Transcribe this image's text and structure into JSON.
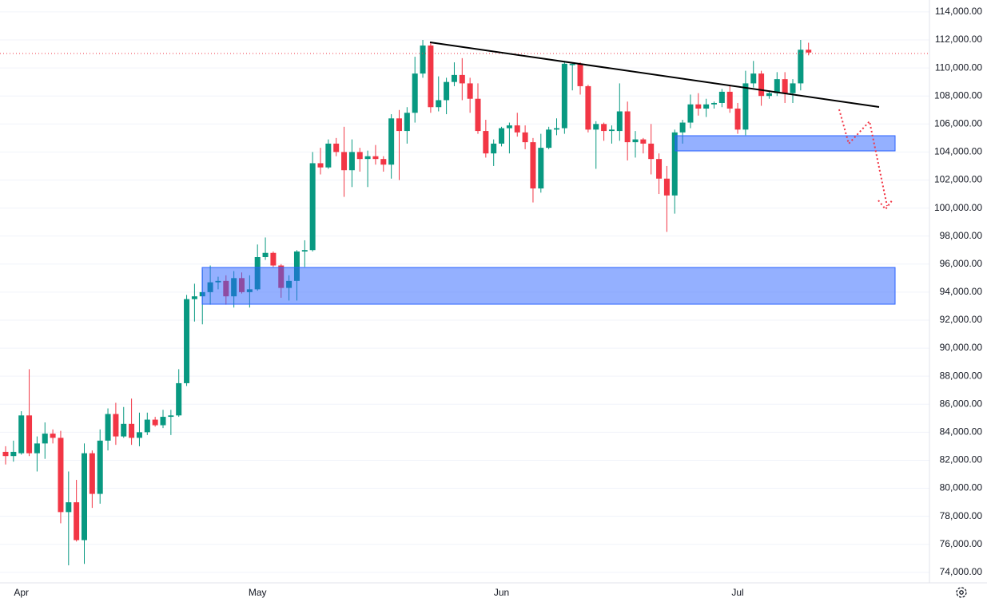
{
  "chart_data": {
    "type": "candlestick",
    "up_color": "#089981",
    "down_color": "#f23645",
    "grid": true,
    "categories": [
      null,
      null,
      "Apr",
      null,
      null,
      null,
      null,
      null,
      null,
      null,
      null,
      null,
      null,
      null,
      null,
      null,
      null,
      null,
      null,
      null,
      null,
      null,
      null,
      null,
      null,
      null,
      null,
      null,
      null,
      null,
      null,
      null,
      "May",
      null,
      null,
      null,
      null,
      null,
      null,
      null,
      null,
      null,
      null,
      null,
      null,
      null,
      null,
      null,
      null,
      null,
      null,
      null,
      null,
      null,
      null,
      null,
      null,
      null,
      null,
      null,
      null,
      null,
      null,
      "Jun",
      null,
      null,
      null,
      null,
      null,
      null,
      null,
      null,
      null,
      null,
      null,
      null,
      null,
      null,
      null,
      null,
      null,
      null,
      null,
      null,
      null,
      null,
      null,
      null,
      null,
      null,
      null,
      null,
      null,
      "Jul",
      null,
      null,
      null,
      null,
      null,
      null,
      null,
      null,
      null
    ],
    "open": [
      82600,
      82300,
      82500,
      85200,
      82500,
      83200,
      83900,
      83600,
      78300,
      79000,
      76300,
      82500,
      79600,
      83400,
      85300,
      83700,
      84600,
      83600,
      84000,
      84900,
      84500,
      85100,
      85200,
      87500,
      93500,
      93700,
      94000,
      94700,
      94800,
      93700,
      95000,
      94000,
      94200,
      96500,
      96800,
      95900,
      94300,
      94800,
      96900,
      97000,
      103200,
      102900,
      104600,
      104000,
      102700,
      104000,
      103500,
      103700,
      103500,
      103100,
      106400,
      105500,
      106800,
      109600,
      111600,
      107200,
      107700,
      109000,
      109500,
      108900,
      107800,
      105500,
      103900,
      104600,
      105700,
      105900,
      105400,
      104700,
      101400,
      104300,
      105600,
      105700,
      110200,
      110300,
      108700,
      105600,
      106000,
      105500,
      105500,
      106900,
      104700,
      104900,
      104600,
      103500,
      102100,
      100900,
      105400,
      106100,
      107400,
      107100,
      107400,
      107500,
      108300,
      107100,
      105600,
      108900,
      109600,
      108000,
      108200,
      109200,
      108200,
      108900,
      111300
    ],
    "high": [
      83000,
      83400,
      85500,
      88500,
      83700,
      84700,
      84200,
      84100,
      81200,
      80600,
      83200,
      82700,
      84200,
      85700,
      86100,
      85800,
      86400,
      85400,
      85400,
      85100,
      85600,
      85600,
      88500,
      93800,
      94600,
      95600,
      95900,
      95100,
      95200,
      95500,
      95400,
      95200,
      97400,
      97900,
      96900,
      96000,
      95200,
      97000,
      97700,
      104000,
      104300,
      104900,
      105000,
      105800,
      104900,
      104300,
      104100,
      104500,
      103700,
      106700,
      107000,
      107200,
      110800,
      112000,
      111800,
      109400,
      109300,
      110400,
      110700,
      109300,
      108900,
      106300,
      104900,
      105800,
      106100,
      106800,
      105900,
      105000,
      105300,
      105800,
      106400,
      110500,
      110400,
      110400,
      108800,
      106200,
      106100,
      105900,
      108900,
      107600,
      105500,
      105000,
      106000,
      103900,
      103000,
      105600,
      106300,
      108100,
      108200,
      107800,
      107600,
      108500,
      108800,
      107500,
      109800,
      110500,
      109800,
      108400,
      109700,
      109700,
      109200,
      112000,
      111800
    ],
    "low": [
      81700,
      81900,
      82400,
      82300,
      81200,
      82100,
      83200,
      77500,
      74500,
      76200,
      74600,
      78600,
      78900,
      82700,
      83100,
      83600,
      83100,
      83000,
      83800,
      84400,
      84300,
      83800,
      85100,
      87300,
      91900,
      91700,
      93100,
      94200,
      93100,
      92900,
      93900,
      92900,
      94100,
      96300,
      95800,
      93600,
      93400,
      93400,
      95800,
      96900,
      102400,
      102800,
      103700,
      100800,
      101500,
      102600,
      101500,
      103100,
      102600,
      102100,
      102000,
      104600,
      106100,
      109300,
      106800,
      106900,
      106700,
      108700,
      107700,
      106800,
      105300,
      103600,
      103000,
      104400,
      103900,
      105100,
      104200,
      100400,
      101100,
      104200,
      105200,
      105300,
      108400,
      108100,
      105400,
      102800,
      104800,
      104600,
      104800,
      103400,
      103600,
      103900,
      102400,
      101000,
      98300,
      99600,
      104600,
      105700,
      106600,
      106500,
      107100,
      107200,
      106800,
      105300,
      105200,
      108600,
      107300,
      107800,
      108000,
      107500,
      107500,
      108400,
      110900
    ],
    "close": [
      82300,
      82600,
      85200,
      82500,
      83200,
      83900,
      83600,
      78300,
      79000,
      76300,
      82500,
      79600,
      83400,
      85300,
      83700,
      84600,
      83600,
      84000,
      84900,
      84500,
      85100,
      85200,
      87500,
      93500,
      93700,
      94000,
      94700,
      94800,
      93700,
      95000,
      94000,
      94200,
      96500,
      96800,
      95900,
      94300,
      94800,
      96900,
      97000,
      103200,
      102900,
      104600,
      104000,
      102700,
      104000,
      103500,
      103700,
      103500,
      103100,
      106400,
      105500,
      106800,
      109600,
      111600,
      107200,
      107700,
      109000,
      109500,
      108900,
      107800,
      105500,
      103900,
      104600,
      105700,
      105900,
      105400,
      104700,
      101400,
      104300,
      105600,
      105700,
      110300,
      110300,
      108700,
      105600,
      106000,
      105500,
      105600,
      106900,
      104700,
      104900,
      104600,
      103500,
      102100,
      100900,
      105400,
      106100,
      107400,
      107100,
      107400,
      107500,
      108300,
      107100,
      105600,
      108900,
      109600,
      108000,
      108200,
      109200,
      108200,
      108900,
      111300,
      111100
    ],
    "ylim": [
      73250,
      114850
    ],
    "yticks": [
      {
        "value": 74000,
        "label": "74,000.00"
      },
      {
        "value": 76000,
        "label": "76,000.00"
      },
      {
        "value": 78000,
        "label": "78,000.00"
      },
      {
        "value": 80000,
        "label": "80,000.00"
      },
      {
        "value": 82000,
        "label": "82,000.00"
      },
      {
        "value": 84000,
        "label": "84,000.00"
      },
      {
        "value": 86000,
        "label": "86,000.00"
      },
      {
        "value": 88000,
        "label": "88,000.00"
      },
      {
        "value": 90000,
        "label": "90,000.00"
      },
      {
        "value": 92000,
        "label": "92,000.00"
      },
      {
        "value": 94000,
        "label": "94,000.00"
      },
      {
        "value": 96000,
        "label": "96,000.00"
      },
      {
        "value": 98000,
        "label": "98,000.00"
      },
      {
        "value": 100000,
        "label": "100,000.00"
      },
      {
        "value": 102000,
        "label": "102,000.00"
      },
      {
        "value": 104000,
        "label": "104,000.00"
      },
      {
        "value": 106000,
        "label": "106,000.00"
      },
      {
        "value": 108000,
        "label": "108,000.00"
      },
      {
        "value": 110000,
        "label": "110,000.00"
      },
      {
        "value": 112000,
        "label": "112,000.00"
      },
      {
        "value": 114000,
        "label": "114,000.00"
      }
    ]
  }
}
